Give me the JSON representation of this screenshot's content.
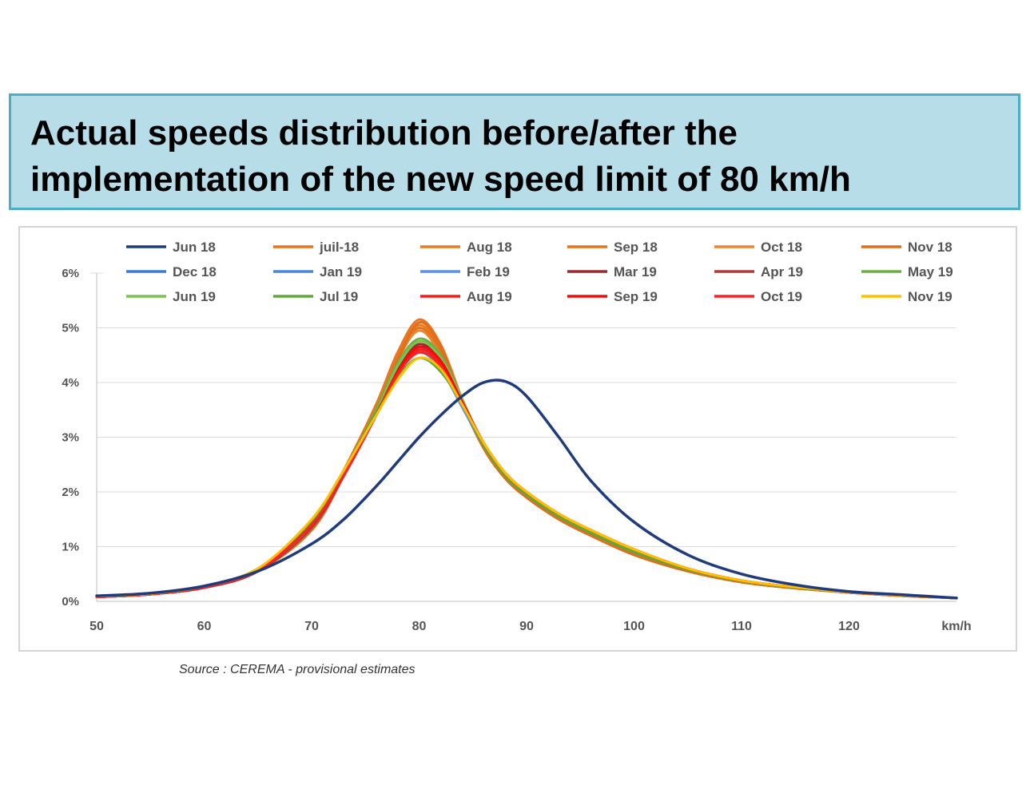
{
  "title": "Actual speeds distribution before/after the implementation of the new speed limit of 80 km/h",
  "source": "Source : CEREMA - provisional estimates",
  "chart_data": {
    "type": "line",
    "title": "Actual speeds distribution before/after the implementation of the new speed limit of 80 km/h",
    "xlabel": "km/h",
    "ylabel": "",
    "xlim": [
      50,
      130
    ],
    "ylim": [
      0,
      6
    ],
    "x_ticks": [
      50,
      60,
      70,
      80,
      90,
      100,
      110,
      120
    ],
    "x_tick_labels": [
      "50",
      "60",
      "70",
      "80",
      "90",
      "100",
      "110",
      "120",
      "km/h"
    ],
    "y_ticks": [
      0,
      1,
      2,
      3,
      4,
      5,
      6
    ],
    "y_tick_labels": [
      "0%",
      "1%",
      "2%",
      "3%",
      "4%",
      "5%",
      "6%"
    ],
    "grid": "horizontal",
    "legend_position": "top",
    "x": [
      50,
      55,
      60,
      65,
      70,
      73,
      76,
      78,
      80,
      82,
      84,
      86,
      88,
      90,
      93,
      96,
      100,
      105,
      110,
      115,
      120,
      125,
      130
    ],
    "series": [
      {
        "name": "Jun 18",
        "color": "#1f3b7a",
        "values": [
          0.1,
          0.15,
          0.28,
          0.55,
          1.05,
          1.5,
          2.1,
          2.55,
          3.0,
          3.4,
          3.75,
          4.0,
          4.02,
          3.75,
          3.0,
          2.2,
          1.45,
          0.85,
          0.5,
          0.3,
          0.18,
          0.12,
          0.06
        ]
      },
      {
        "name": "juil-18",
        "color": "#e8741f",
        "values": [
          0.08,
          0.13,
          0.25,
          0.55,
          1.35,
          2.4,
          3.6,
          4.55,
          5.15,
          4.7,
          3.7,
          2.8,
          2.25,
          1.9,
          1.5,
          1.2,
          0.85,
          0.55,
          0.35,
          0.24,
          0.16,
          0.1,
          0.06
        ]
      },
      {
        "name": "Aug 18",
        "color": "#ea7a22",
        "values": [
          0.08,
          0.13,
          0.25,
          0.55,
          1.35,
          2.35,
          3.55,
          4.5,
          5.05,
          4.6,
          3.65,
          2.8,
          2.25,
          1.9,
          1.5,
          1.2,
          0.85,
          0.55,
          0.35,
          0.24,
          0.16,
          0.1,
          0.06
        ]
      },
      {
        "name": "Sep 18",
        "color": "#e5731c",
        "values": [
          0.08,
          0.13,
          0.25,
          0.55,
          1.35,
          2.35,
          3.5,
          4.45,
          5.0,
          4.55,
          3.6,
          2.8,
          2.25,
          1.9,
          1.5,
          1.2,
          0.85,
          0.55,
          0.35,
          0.24,
          0.16,
          0.1,
          0.06
        ]
      },
      {
        "name": "Oct 18",
        "color": "#ee8430",
        "values": [
          0.08,
          0.13,
          0.25,
          0.55,
          1.3,
          2.3,
          3.45,
          4.4,
          4.95,
          4.5,
          3.6,
          2.8,
          2.25,
          1.9,
          1.5,
          1.2,
          0.85,
          0.55,
          0.35,
          0.24,
          0.16,
          0.1,
          0.06
        ]
      },
      {
        "name": "Nov 18",
        "color": "#df6f1b",
        "values": [
          0.08,
          0.13,
          0.25,
          0.55,
          1.3,
          2.3,
          3.45,
          4.4,
          5.1,
          4.65,
          3.65,
          2.8,
          2.25,
          1.9,
          1.5,
          1.2,
          0.85,
          0.55,
          0.35,
          0.24,
          0.16,
          0.1,
          0.06
        ]
      },
      {
        "name": "Dec 18",
        "color": "#3c7bd6",
        "values": [
          0.08,
          0.13,
          0.25,
          0.55,
          1.35,
          2.3,
          3.4,
          4.2,
          4.65,
          4.35,
          3.6,
          2.85,
          2.3,
          1.95,
          1.55,
          1.25,
          0.9,
          0.58,
          0.37,
          0.25,
          0.17,
          0.11,
          0.06
        ]
      },
      {
        "name": "Jan 19",
        "color": "#4a87db",
        "values": [
          0.08,
          0.13,
          0.25,
          0.55,
          1.35,
          2.3,
          3.4,
          4.2,
          4.6,
          4.3,
          3.6,
          2.85,
          2.3,
          1.95,
          1.55,
          1.25,
          0.9,
          0.58,
          0.37,
          0.25,
          0.17,
          0.11,
          0.06
        ]
      },
      {
        "name": "Feb 19",
        "color": "#5a93e0",
        "values": [
          0.08,
          0.13,
          0.25,
          0.55,
          1.35,
          2.3,
          3.4,
          4.15,
          4.55,
          4.25,
          3.55,
          2.85,
          2.3,
          1.95,
          1.55,
          1.25,
          0.9,
          0.58,
          0.37,
          0.25,
          0.17,
          0.11,
          0.06
        ]
      },
      {
        "name": "Mar 19",
        "color": "#9c2a2a",
        "values": [
          0.08,
          0.13,
          0.25,
          0.55,
          1.35,
          2.3,
          3.45,
          4.25,
          4.7,
          4.4,
          3.65,
          2.85,
          2.3,
          1.95,
          1.55,
          1.25,
          0.9,
          0.58,
          0.37,
          0.25,
          0.17,
          0.11,
          0.06
        ]
      },
      {
        "name": "Apr 19",
        "color": "#b03a3a",
        "values": [
          0.08,
          0.13,
          0.25,
          0.55,
          1.35,
          2.3,
          3.45,
          4.3,
          4.75,
          4.45,
          3.65,
          2.85,
          2.3,
          1.95,
          1.55,
          1.25,
          0.9,
          0.58,
          0.37,
          0.25,
          0.17,
          0.11,
          0.06
        ]
      },
      {
        "name": "May 19",
        "color": "#6ab045",
        "values": [
          0.08,
          0.13,
          0.26,
          0.57,
          1.4,
          2.35,
          3.5,
          4.35,
          4.8,
          4.5,
          3.7,
          2.85,
          2.3,
          1.95,
          1.55,
          1.25,
          0.9,
          0.58,
          0.37,
          0.25,
          0.17,
          0.11,
          0.06
        ]
      },
      {
        "name": "Jun 19",
        "color": "#7bc24f",
        "values": [
          0.08,
          0.13,
          0.26,
          0.57,
          1.4,
          2.35,
          3.45,
          4.3,
          4.75,
          4.45,
          3.7,
          2.85,
          2.3,
          1.95,
          1.55,
          1.25,
          0.9,
          0.58,
          0.37,
          0.25,
          0.17,
          0.11,
          0.06
        ]
      },
      {
        "name": "Jul 19",
        "color": "#5fa83a",
        "values": [
          0.09,
          0.14,
          0.28,
          0.6,
          1.45,
          2.4,
          3.45,
          4.1,
          4.45,
          4.2,
          3.6,
          2.85,
          2.3,
          1.95,
          1.55,
          1.25,
          0.9,
          0.58,
          0.37,
          0.25,
          0.17,
          0.11,
          0.06
        ]
      },
      {
        "name": "Aug 19",
        "color": "#ff1a1a",
        "values": [
          0.08,
          0.13,
          0.26,
          0.57,
          1.4,
          2.3,
          3.4,
          4.15,
          4.6,
          4.35,
          3.65,
          2.9,
          2.35,
          2.0,
          1.6,
          1.3,
          0.95,
          0.6,
          0.38,
          0.26,
          0.17,
          0.11,
          0.06
        ]
      },
      {
        "name": "Sep 19",
        "color": "#f20d0d",
        "values": [
          0.08,
          0.13,
          0.26,
          0.57,
          1.4,
          2.3,
          3.4,
          4.2,
          4.65,
          4.4,
          3.65,
          2.9,
          2.35,
          2.0,
          1.6,
          1.3,
          0.95,
          0.6,
          0.38,
          0.26,
          0.17,
          0.11,
          0.06
        ]
      },
      {
        "name": "Oct 19",
        "color": "#ff2020",
        "values": [
          0.08,
          0.13,
          0.26,
          0.57,
          1.4,
          2.3,
          3.4,
          4.15,
          4.55,
          4.3,
          3.6,
          2.9,
          2.35,
          2.0,
          1.6,
          1.3,
          0.95,
          0.6,
          0.38,
          0.26,
          0.17,
          0.11,
          0.06
        ]
      },
      {
        "name": "Nov 19",
        "color": "#ffc000",
        "values": [
          0.09,
          0.14,
          0.28,
          0.6,
          1.5,
          2.4,
          3.4,
          4.05,
          4.45,
          4.25,
          3.6,
          2.9,
          2.35,
          2.0,
          1.6,
          1.3,
          0.95,
          0.6,
          0.38,
          0.26,
          0.17,
          0.11,
          0.06
        ]
      }
    ]
  }
}
